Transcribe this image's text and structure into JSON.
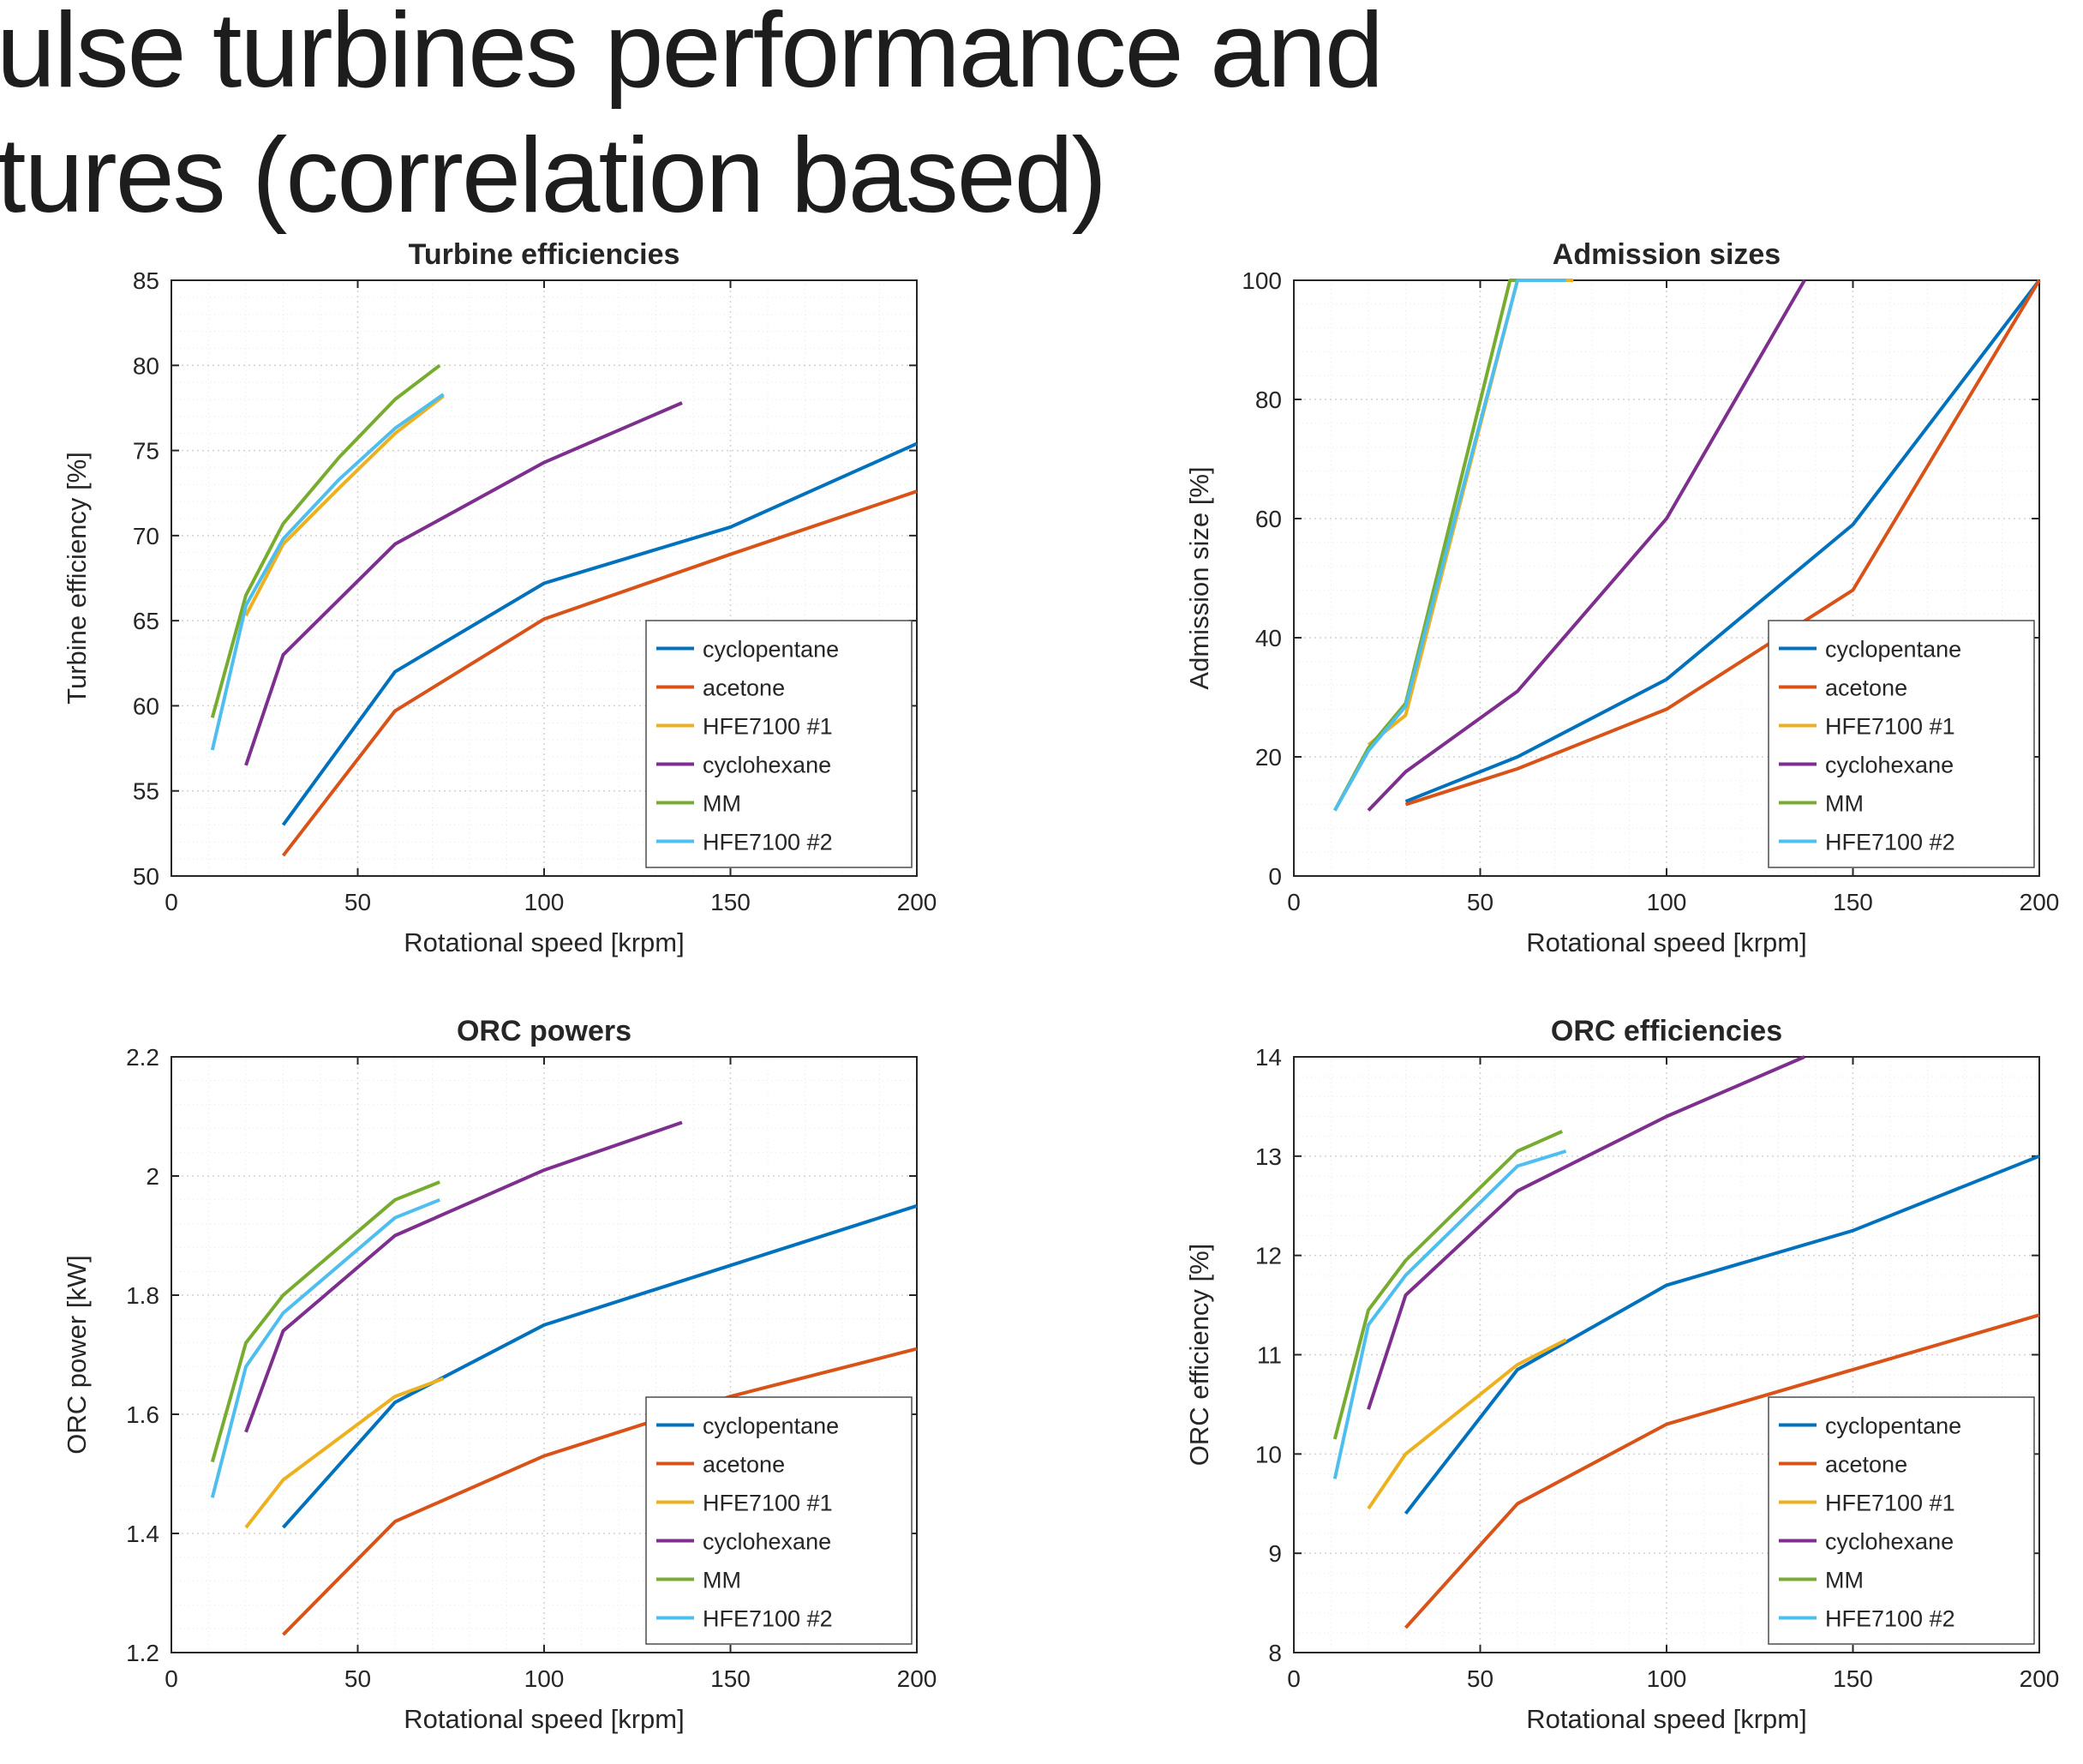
{
  "title": {
    "line1": "ulse turbines performance and",
    "line2": "tures (correlation based)"
  },
  "style": {
    "background": "#ffffff",
    "axis_color": "#262626",
    "grid_color": "#d2d2d2",
    "minor_grid_color": "#e9e9e9",
    "text_color": "#262626"
  },
  "legend_labels": [
    "cyclopentane",
    "acetone",
    "HFE7100 #1",
    "cyclohexane",
    "MM",
    "HFE7100 #2"
  ],
  "chart_data": [
    {
      "id": "turbine-efficiencies",
      "type": "line",
      "title": "Turbine efficiencies",
      "xlabel": "Rotational speed [krpm]",
      "ylabel": "Turbine efficiency [%]",
      "xlim": [
        0,
        200
      ],
      "ylim": [
        50,
        85
      ],
      "xticks": [
        0,
        50,
        100,
        150,
        200
      ],
      "yticks": [
        50,
        55,
        60,
        65,
        70,
        75,
        80,
        85
      ],
      "grid": true,
      "legend_position": "bottom-right",
      "series": [
        {
          "name": "cyclopentane",
          "color": "#0072BD",
          "x": [
            30,
            60,
            100,
            150,
            200
          ],
          "y": [
            53,
            62,
            67.2,
            70.5,
            75.4
          ]
        },
        {
          "name": "acetone",
          "color": "#D95319",
          "x": [
            30,
            60,
            100,
            150,
            200
          ],
          "y": [
            51.2,
            59.7,
            65.1,
            68.9,
            72.6
          ]
        },
        {
          "name": "HFE7100 #1",
          "color": "#EDB120",
          "x": [
            20,
            30,
            45,
            60,
            73
          ],
          "y": [
            65.3,
            69.5,
            72.8,
            76,
            78.2
          ]
        },
        {
          "name": "cyclohexane",
          "color": "#7E2F8E",
          "x": [
            20,
            30,
            60,
            100,
            137
          ],
          "y": [
            56.5,
            63,
            69.5,
            74.3,
            77.8
          ]
        },
        {
          "name": "MM",
          "color": "#77AC30",
          "x": [
            11,
            20,
            30,
            45,
            60,
            72
          ],
          "y": [
            59.3,
            66.5,
            70.7,
            74.6,
            78,
            80
          ]
        },
        {
          "name": "HFE7100 #2",
          "color": "#4DBEEE",
          "x": [
            11,
            20,
            30,
            45,
            60,
            73
          ],
          "y": [
            57.4,
            65.9,
            69.8,
            73.3,
            76.3,
            78.3
          ]
        }
      ]
    },
    {
      "id": "admission-sizes",
      "type": "line",
      "title": "Admission sizes",
      "xlabel": "Rotational speed [krpm]",
      "ylabel": "Admission size [%]",
      "xlim": [
        0,
        200
      ],
      "ylim": [
        0,
        100
      ],
      "xticks": [
        0,
        50,
        100,
        150,
        200
      ],
      "yticks": [
        0,
        20,
        40,
        60,
        80,
        100
      ],
      "grid": true,
      "legend_position": "bottom-right",
      "series": [
        {
          "name": "cyclopentane",
          "color": "#0072BD",
          "x": [
            30,
            60,
            100,
            150,
            200
          ],
          "y": [
            12.5,
            20,
            33,
            59,
            100
          ]
        },
        {
          "name": "acetone",
          "color": "#D95319",
          "x": [
            30,
            60,
            100,
            150,
            200
          ],
          "y": [
            12,
            18,
            28,
            48,
            100
          ]
        },
        {
          "name": "HFE7100 #1",
          "color": "#EDB120",
          "x": [
            20,
            30,
            60,
            75
          ],
          "y": [
            22,
            27,
            100,
            100
          ]
        },
        {
          "name": "cyclohexane",
          "color": "#7E2F8E",
          "x": [
            20,
            30,
            60,
            100,
            137
          ],
          "y": [
            11,
            17.5,
            31,
            60,
            100
          ]
        },
        {
          "name": "MM",
          "color": "#77AC30",
          "x": [
            11,
            20,
            30,
            58,
            72
          ],
          "y": [
            11,
            21.5,
            29,
            100,
            100
          ]
        },
        {
          "name": "HFE7100 #2",
          "color": "#4DBEEE",
          "x": [
            11,
            20,
            30,
            60,
            73
          ],
          "y": [
            11,
            21,
            28.5,
            100,
            100
          ]
        }
      ]
    },
    {
      "id": "orc-powers",
      "type": "line",
      "title": "ORC powers",
      "xlabel": "Rotational speed [krpm]",
      "ylabel": "ORC power [kW]",
      "xlim": [
        0,
        200
      ],
      "ylim": [
        1.2,
        2.2
      ],
      "xticks": [
        0,
        50,
        100,
        150,
        200
      ],
      "yticks": [
        1.2,
        1.4,
        1.6,
        1.8,
        2,
        2.2
      ],
      "grid": true,
      "legend_position": "bottom-right",
      "series": [
        {
          "name": "cyclopentane",
          "color": "#0072BD",
          "x": [
            30,
            60,
            100,
            150,
            200
          ],
          "y": [
            1.41,
            1.62,
            1.75,
            1.85,
            1.95
          ]
        },
        {
          "name": "acetone",
          "color": "#D95319",
          "x": [
            30,
            60,
            100,
            150,
            200
          ],
          "y": [
            1.23,
            1.42,
            1.53,
            1.63,
            1.71
          ]
        },
        {
          "name": "HFE7100 #1",
          "color": "#EDB120",
          "x": [
            20,
            30,
            60,
            73
          ],
          "y": [
            1.41,
            1.49,
            1.63,
            1.66
          ]
        },
        {
          "name": "cyclohexane",
          "color": "#7E2F8E",
          "x": [
            20,
            30,
            60,
            100,
            137
          ],
          "y": [
            1.57,
            1.74,
            1.9,
            2.01,
            2.09
          ]
        },
        {
          "name": "MM",
          "color": "#77AC30",
          "x": [
            11,
            20,
            30,
            45,
            60,
            72
          ],
          "y": [
            1.52,
            1.72,
            1.8,
            1.88,
            1.96,
            1.99
          ]
        },
        {
          "name": "HFE7100 #2",
          "color": "#4DBEEE",
          "x": [
            11,
            20,
            30,
            60,
            72
          ],
          "y": [
            1.46,
            1.68,
            1.77,
            1.93,
            1.96
          ]
        }
      ]
    },
    {
      "id": "orc-efficiencies",
      "type": "line",
      "title": "ORC efficiencies",
      "xlabel": "Rotational speed [krpm]",
      "ylabel": "ORC efficiency [%]",
      "xlim": [
        0,
        200
      ],
      "ylim": [
        8,
        14
      ],
      "xticks": [
        0,
        50,
        100,
        150,
        200
      ],
      "yticks": [
        8,
        9,
        10,
        11,
        12,
        13,
        14
      ],
      "grid": true,
      "legend_position": "bottom-right",
      "series": [
        {
          "name": "cyclopentane",
          "color": "#0072BD",
          "x": [
            30,
            60,
            100,
            150,
            200
          ],
          "y": [
            9.4,
            10.85,
            11.7,
            12.25,
            13
          ]
        },
        {
          "name": "acetone",
          "color": "#D95319",
          "x": [
            30,
            60,
            100,
            150,
            200
          ],
          "y": [
            8.25,
            9.5,
            10.3,
            10.85,
            11.4
          ]
        },
        {
          "name": "HFE7100 #1",
          "color": "#EDB120",
          "x": [
            20,
            30,
            60,
            73
          ],
          "y": [
            9.45,
            10,
            10.9,
            11.15
          ]
        },
        {
          "name": "cyclohexane",
          "color": "#7E2F8E",
          "x": [
            20,
            30,
            60,
            100,
            137
          ],
          "y": [
            10.45,
            11.6,
            12.65,
            13.4,
            14
          ]
        },
        {
          "name": "MM",
          "color": "#77AC30",
          "x": [
            11,
            20,
            30,
            60,
            72
          ],
          "y": [
            10.15,
            11.45,
            11.95,
            13.05,
            13.25
          ]
        },
        {
          "name": "HFE7100 #2",
          "color": "#4DBEEE",
          "x": [
            11,
            20,
            30,
            60,
            73
          ],
          "y": [
            9.75,
            11.3,
            11.8,
            12.9,
            13.05
          ]
        }
      ]
    }
  ]
}
